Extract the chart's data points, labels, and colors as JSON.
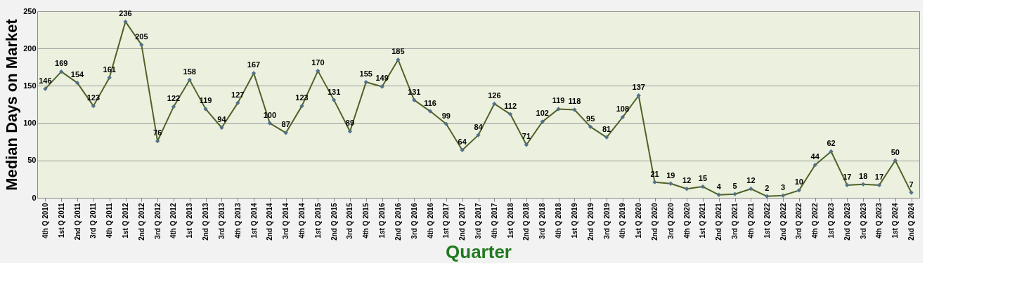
{
  "chart_data": {
    "type": "line",
    "xlabel": "Quarter",
    "ylabel": "Median Days on Market",
    "categories": [
      "4th Q 2010",
      "1st Q 2011",
      "2nd Q 2011",
      "3rd Q 2011",
      "4th Q 2011",
      "1st Q 2012",
      "2nd Q 2012",
      "3rd Q 2012",
      "4th Q 2012",
      "1st Q 2013",
      "2nd Q 2013",
      "3rd Q 2013",
      "4th Q 2013",
      "1st Q 2014",
      "2nd Q 2014",
      "3rd Q 2014",
      "4th Q 2014",
      "1st Q 2015",
      "2nd Q 2015",
      "3rd Q 2015",
      "4th Q 2015",
      "1st Q 2016",
      "2nd Q 2016",
      "3rd Q 2016",
      "4th Q 2016",
      "1st Q 2017",
      "2nd Q 2017",
      "3rd Q 2017",
      "4th Q 2017",
      "1st Q 2018",
      "2nd Q 2018",
      "3rd Q 2018",
      "4th Q 2018",
      "1st Q 2019",
      "2nd Q 2019",
      "3rd Q 2019",
      "4th Q 2019",
      "1st Q 2020",
      "2nd Q 2020",
      "3rd Q 2020",
      "4th Q 2020",
      "1st Q 2021",
      "2nd Q 2021",
      "3rd Q 2021",
      "4th Q 2021",
      "1st Q 2022",
      "2nd Q 2022",
      "3rd Q 2022",
      "4th Q 2022",
      "1st Q 2023",
      "2nd Q 2023",
      "3rd Q 2023",
      "4th Q 2023",
      "1st Q 2024",
      "2nd Q 2024"
    ],
    "series": [
      {
        "color": "#4f6228",
        "values": [
          146,
          169,
          154,
          123,
          161,
          236,
          205,
          76,
          122,
          158,
          119,
          94,
          127,
          167,
          100,
          87,
          123,
          170,
          131,
          89,
          155,
          149,
          185,
          131,
          116,
          99,
          64,
          84,
          126,
          112,
          71,
          102,
          119,
          118,
          95,
          81,
          108,
          137,
          21,
          19,
          12,
          15,
          4,
          5,
          12,
          2,
          3,
          10,
          44,
          62,
          17,
          18,
          17,
          50,
          7
        ]
      }
    ],
    "ylim": [
      0,
      250
    ],
    "yticks": [
      0,
      50,
      100,
      150,
      200,
      250
    ],
    "grid": "y",
    "marker": "diamond",
    "line_style": "solid",
    "data_labels": true,
    "legend": false
  }
}
